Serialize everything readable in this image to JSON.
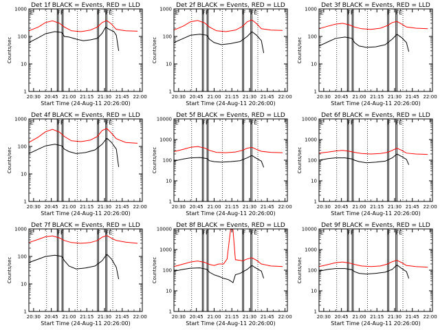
{
  "chart_data": {
    "type": "line",
    "grid": "3x3",
    "panels": [
      {
        "title": "Det 1f BLACK = Events, RED = LLD",
        "ylim": [
          1,
          1000
        ],
        "yticks": [
          1,
          10,
          100,
          1000
        ],
        "black": [
          [
            0,
            60
          ],
          [
            8,
            90
          ],
          [
            14,
            125
          ],
          [
            22,
            150
          ],
          [
            28,
            140
          ],
          [
            30,
            100
          ],
          [
            34,
            95
          ],
          [
            40,
            80
          ],
          [
            46,
            70
          ],
          [
            52,
            75
          ],
          [
            58,
            85
          ],
          [
            62,
            130
          ],
          [
            65,
            220
          ],
          [
            68,
            180
          ],
          [
            72,
            150
          ],
          [
            74,
            110
          ],
          [
            76,
            30
          ]
        ],
        "red": [
          [
            0,
            160
          ],
          [
            8,
            220
          ],
          [
            14,
            320
          ],
          [
            20,
            370
          ],
          [
            26,
            300
          ],
          [
            30,
            220
          ],
          [
            36,
            160
          ],
          [
            44,
            150
          ],
          [
            52,
            170
          ],
          [
            58,
            220
          ],
          [
            62,
            320
          ],
          [
            66,
            380
          ],
          [
            70,
            280
          ],
          [
            74,
            180
          ],
          [
            82,
            160
          ],
          [
            92,
            155
          ]
        ]
      },
      {
        "title": "Det 2f BLACK = Events, RED = LLD",
        "ylim": [
          1,
          1000
        ],
        "yticks": [
          1,
          10,
          100,
          1000
        ],
        "black": [
          [
            0,
            60
          ],
          [
            8,
            85
          ],
          [
            14,
            110
          ],
          [
            22,
            120
          ],
          [
            28,
            110
          ],
          [
            30,
            80
          ],
          [
            34,
            60
          ],
          [
            40,
            50
          ],
          [
            48,
            55
          ],
          [
            56,
            65
          ],
          [
            62,
            100
          ],
          [
            66,
            150
          ],
          [
            70,
            110
          ],
          [
            74,
            70
          ],
          [
            76,
            25
          ]
        ],
        "red": [
          [
            0,
            170
          ],
          [
            8,
            240
          ],
          [
            14,
            340
          ],
          [
            20,
            380
          ],
          [
            26,
            310
          ],
          [
            30,
            220
          ],
          [
            36,
            160
          ],
          [
            44,
            150
          ],
          [
            52,
            170
          ],
          [
            58,
            230
          ],
          [
            62,
            340
          ],
          [
            66,
            400
          ],
          [
            70,
            290
          ],
          [
            74,
            190
          ],
          [
            82,
            170
          ],
          [
            92,
            165
          ]
        ]
      },
      {
        "title": "Det 3f BLACK = Events, RED = LLD",
        "ylim": [
          1,
          1000
        ],
        "yticks": [
          1,
          10,
          100,
          1000
        ],
        "black": [
          [
            0,
            45
          ],
          [
            8,
            65
          ],
          [
            14,
            85
          ],
          [
            22,
            95
          ],
          [
            28,
            85
          ],
          [
            30,
            60
          ],
          [
            34,
            45
          ],
          [
            40,
            40
          ],
          [
            48,
            42
          ],
          [
            56,
            50
          ],
          [
            62,
            80
          ],
          [
            66,
            120
          ],
          [
            70,
            90
          ],
          [
            74,
            60
          ],
          [
            76,
            28
          ]
        ],
        "red": [
          [
            0,
            190
          ],
          [
            8,
            240
          ],
          [
            14,
            280
          ],
          [
            20,
            300
          ],
          [
            26,
            260
          ],
          [
            30,
            220
          ],
          [
            36,
            190
          ],
          [
            44,
            180
          ],
          [
            52,
            200
          ],
          [
            58,
            250
          ],
          [
            62,
            320
          ],
          [
            66,
            350
          ],
          [
            70,
            280
          ],
          [
            74,
            220
          ],
          [
            82,
            200
          ],
          [
            92,
            190
          ]
        ]
      },
      {
        "title": "Det 4f BLACK = Events, RED = LLD",
        "ylim": [
          1,
          1000
        ],
        "yticks": [
          1,
          10,
          100,
          1000
        ],
        "black": [
          [
            0,
            55
          ],
          [
            8,
            80
          ],
          [
            14,
            105
          ],
          [
            22,
            120
          ],
          [
            28,
            105
          ],
          [
            30,
            80
          ],
          [
            34,
            65
          ],
          [
            40,
            55
          ],
          [
            48,
            60
          ],
          [
            56,
            75
          ],
          [
            62,
            120
          ],
          [
            66,
            200
          ],
          [
            70,
            140
          ],
          [
            74,
            80
          ],
          [
            76,
            18
          ]
        ],
        "red": [
          [
            0,
            140
          ],
          [
            8,
            220
          ],
          [
            14,
            340
          ],
          [
            20,
            420
          ],
          [
            26,
            330
          ],
          [
            30,
            230
          ],
          [
            36,
            160
          ],
          [
            44,
            150
          ],
          [
            52,
            170
          ],
          [
            58,
            230
          ],
          [
            62,
            380
          ],
          [
            66,
            450
          ],
          [
            70,
            300
          ],
          [
            74,
            190
          ],
          [
            82,
            140
          ],
          [
            92,
            130
          ]
        ]
      },
      {
        "title": "Det 5f BLACK = Events, RED = LLD",
        "ylim": [
          1,
          10000
        ],
        "yticks": [
          1,
          10,
          100,
          1000,
          10000
        ],
        "black": [
          [
            0,
            90
          ],
          [
            8,
            115
          ],
          [
            14,
            130
          ],
          [
            22,
            135
          ],
          [
            28,
            120
          ],
          [
            30,
            95
          ],
          [
            34,
            85
          ],
          [
            40,
            80
          ],
          [
            48,
            85
          ],
          [
            56,
            95
          ],
          [
            62,
            130
          ],
          [
            66,
            170
          ],
          [
            70,
            120
          ],
          [
            74,
            90
          ],
          [
            76,
            45
          ]
        ],
        "red": [
          [
            0,
            260
          ],
          [
            8,
            340
          ],
          [
            14,
            420
          ],
          [
            20,
            460
          ],
          [
            26,
            390
          ],
          [
            30,
            300
          ],
          [
            36,
            240
          ],
          [
            44,
            230
          ],
          [
            52,
            250
          ],
          [
            58,
            300
          ],
          [
            62,
            380
          ],
          [
            66,
            420
          ],
          [
            70,
            330
          ],
          [
            74,
            270
          ],
          [
            82,
            240
          ],
          [
            92,
            230
          ]
        ]
      },
      {
        "title": "Det 6f BLACK = Events, RED = LLD",
        "ylim": [
          1,
          10000
        ],
        "yticks": [
          1,
          10,
          100,
          1000,
          10000
        ],
        "black": [
          [
            0,
            100
          ],
          [
            8,
            120
          ],
          [
            14,
            130
          ],
          [
            22,
            130
          ],
          [
            28,
            115
          ],
          [
            30,
            100
          ],
          [
            34,
            85
          ],
          [
            40,
            75
          ],
          [
            48,
            80
          ],
          [
            56,
            90
          ],
          [
            62,
            130
          ],
          [
            66,
            200
          ],
          [
            70,
            150
          ],
          [
            74,
            110
          ],
          [
            76,
            60
          ]
        ],
        "red": [
          [
            0,
            220
          ],
          [
            8,
            250
          ],
          [
            14,
            280
          ],
          [
            20,
            300
          ],
          [
            26,
            270
          ],
          [
            30,
            240
          ],
          [
            36,
            210
          ],
          [
            44,
            200
          ],
          [
            52,
            210
          ],
          [
            58,
            240
          ],
          [
            62,
            300
          ],
          [
            66,
            380
          ],
          [
            70,
            300
          ],
          [
            74,
            220
          ],
          [
            82,
            200
          ],
          [
            92,
            190
          ]
        ]
      },
      {
        "title": "Det 7f BLACK = Events, RED = LLD",
        "ylim": [
          1,
          1000
        ],
        "yticks": [
          1,
          10,
          100,
          1000
        ],
        "black": [
          [
            0,
            60
          ],
          [
            8,
            80
          ],
          [
            14,
            100
          ],
          [
            22,
            110
          ],
          [
            28,
            100
          ],
          [
            30,
            70
          ],
          [
            34,
            45
          ],
          [
            40,
            35
          ],
          [
            48,
            38
          ],
          [
            56,
            45
          ],
          [
            62,
            70
          ],
          [
            66,
            120
          ],
          [
            70,
            80
          ],
          [
            74,
            40
          ],
          [
            76,
            15
          ]
        ],
        "red": [
          [
            0,
            320
          ],
          [
            8,
            420
          ],
          [
            14,
            520
          ],
          [
            20,
            560
          ],
          [
            26,
            470
          ],
          [
            30,
            380
          ],
          [
            36,
            320
          ],
          [
            44,
            300
          ],
          [
            52,
            320
          ],
          [
            58,
            380
          ],
          [
            62,
            500
          ],
          [
            66,
            580
          ],
          [
            70,
            460
          ],
          [
            74,
            380
          ],
          [
            82,
            330
          ],
          [
            92,
            300
          ]
        ]
      },
      {
        "title": "Det 8f BLACK = Events, RED = LLD",
        "ylim": [
          1,
          10000
        ],
        "yticks": [
          1,
          10,
          100,
          1000,
          10000
        ],
        "black": [
          [
            0,
            90
          ],
          [
            8,
            110
          ],
          [
            14,
            125
          ],
          [
            22,
            130
          ],
          [
            28,
            110
          ],
          [
            30,
            80
          ],
          [
            34,
            60
          ],
          [
            38,
            50
          ],
          [
            40,
            45
          ],
          [
            42,
            40
          ],
          [
            46,
            35
          ],
          [
            48,
            30
          ],
          [
            50,
            25
          ],
          [
            52,
            60
          ],
          [
            56,
            70
          ],
          [
            62,
            110
          ],
          [
            66,
            170
          ],
          [
            70,
            120
          ],
          [
            74,
            90
          ],
          [
            76,
            40
          ]
        ],
        "red": [
          [
            0,
            150
          ],
          [
            8,
            200
          ],
          [
            14,
            250
          ],
          [
            20,
            280
          ],
          [
            26,
            240
          ],
          [
            30,
            190
          ],
          [
            34,
            170
          ],
          [
            38,
            200
          ],
          [
            42,
            200
          ],
          [
            45,
            350
          ],
          [
            48,
            10000
          ],
          [
            50,
            9000
          ],
          [
            52,
            320
          ],
          [
            56,
            300
          ],
          [
            58,
            280
          ],
          [
            62,
            350
          ],
          [
            66,
            400
          ],
          [
            70,
            300
          ],
          [
            74,
            200
          ],
          [
            82,
            160
          ],
          [
            92,
            150
          ]
        ]
      },
      {
        "title": "Det 9f BLACK = Events, RED = LLD",
        "ylim": [
          1,
          10000
        ],
        "yticks": [
          1,
          10,
          100,
          1000,
          10000
        ],
        "black": [
          [
            0,
            90
          ],
          [
            8,
            110
          ],
          [
            14,
            120
          ],
          [
            22,
            120
          ],
          [
            28,
            105
          ],
          [
            30,
            85
          ],
          [
            34,
            70
          ],
          [
            40,
            65
          ],
          [
            48,
            70
          ],
          [
            56,
            80
          ],
          [
            62,
            110
          ],
          [
            66,
            180
          ],
          [
            70,
            120
          ],
          [
            74,
            85
          ],
          [
            76,
            40
          ]
        ],
        "red": [
          [
            0,
            150
          ],
          [
            8,
            190
          ],
          [
            14,
            230
          ],
          [
            20,
            250
          ],
          [
            26,
            220
          ],
          [
            30,
            190
          ],
          [
            36,
            160
          ],
          [
            44,
            150
          ],
          [
            52,
            160
          ],
          [
            58,
            200
          ],
          [
            62,
            260
          ],
          [
            66,
            300
          ],
          [
            70,
            230
          ],
          [
            74,
            170
          ],
          [
            82,
            150
          ],
          [
            92,
            140
          ]
        ]
      }
    ],
    "x_ticks": [
      "20:30",
      "20:45",
      "21:00",
      "21:15",
      "21:30",
      "21:45",
      "22:00"
    ],
    "x_domain_minutes": [
      0,
      96
    ],
    "xlabel": "Start Time (24-Aug-11 20:26:00)",
    "ylabel": "Counts/sec",
    "dotted_lines_minutes": [
      15,
      41,
      71
    ],
    "flag_lines_minutes": [
      24,
      25,
      28,
      29,
      58,
      59,
      65,
      66
    ],
    "flag_labels": [
      {
        "text": "E",
        "x": 1
      },
      {
        "text": "FF",
        "x": 24
      },
      {
        "text": "F",
        "x": 58
      },
      {
        "text": "FE",
        "x": 65
      }
    ],
    "colors": {
      "black": "#000000",
      "red": "#ff0000"
    }
  }
}
